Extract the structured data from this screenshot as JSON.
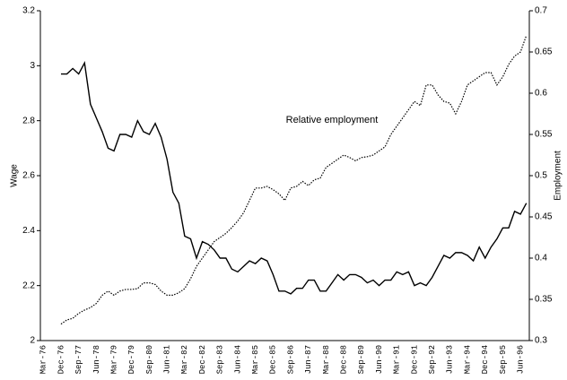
{
  "chart_data": {
    "type": "line",
    "y_label": "Wage",
    "y2_label": "Employment",
    "annotation": "Relative employment",
    "categories": [
      "Mar-76",
      null,
      null,
      "Dec-76",
      null,
      null,
      "Sep-77",
      null,
      null,
      "Jun-78",
      null,
      null,
      "Mar-79",
      null,
      null,
      "Dec-79",
      null,
      null,
      "Sep-80",
      null,
      null,
      "Jun-81",
      null,
      null,
      "Mar-82",
      null,
      null,
      "Dec-82",
      null,
      null,
      "Sep-83",
      null,
      null,
      "Jun-84",
      null,
      null,
      "Mar-85",
      null,
      null,
      "Dec-85",
      null,
      null,
      "Sep-86",
      null,
      null,
      "Jun-87",
      null,
      null,
      "Mar-88",
      null,
      null,
      "Dec-88",
      null,
      null,
      "Sep-89",
      null,
      null,
      "Jun-90",
      null,
      null,
      "Mar-91",
      null,
      null,
      "Dec-91",
      null,
      null,
      "Sep-92",
      null,
      null,
      "Jun-93",
      null,
      null,
      "Mar-94",
      null,
      null,
      "Dec-94",
      null,
      null,
      "Sep-95",
      null,
      null,
      "Jun-96",
      null
    ],
    "series": [
      {
        "color": "#000000",
        "dash": "solid",
        "values": [
          null,
          null,
          null,
          2.97,
          2.97,
          2.99,
          2.97,
          3.01,
          2.86,
          2.81,
          2.76,
          2.7,
          2.69,
          2.75,
          2.75,
          2.74,
          2.8,
          2.76,
          2.75,
          2.79,
          2.74,
          2.66,
          2.54,
          2.5,
          2.38,
          2.37,
          2.3,
          2.36,
          2.35,
          2.33,
          2.3,
          2.3,
          2.26,
          2.25,
          2.27,
          2.29,
          2.28,
          2.3,
          2.29,
          2.24,
          2.18,
          2.18,
          2.17,
          2.19,
          2.19,
          2.22,
          2.22,
          2.18,
          2.18,
          2.21,
          2.24,
          2.22,
          2.24,
          2.24,
          2.23,
          2.21,
          2.22,
          2.2,
          2.22,
          2.22,
          2.25,
          2.24,
          2.25,
          2.2,
          2.21,
          2.2,
          2.23,
          2.27,
          2.31,
          2.3,
          2.32,
          2.32,
          2.31,
          2.29,
          2.34,
          2.3,
          2.34,
          2.37,
          2.41,
          2.41,
          2.47,
          2.46,
          2.5
        ]
      },
      {
        "color": "#000000",
        "dash": "dotted",
        "axis": "y2",
        "values": [
          null,
          null,
          null,
          0.32,
          0.325,
          0.327,
          0.333,
          0.337,
          0.34,
          0.345,
          0.355,
          0.36,
          0.355,
          0.36,
          0.362,
          0.362,
          0.363,
          0.37,
          0.37,
          0.368,
          0.36,
          0.355,
          0.355,
          0.358,
          0.363,
          0.375,
          0.39,
          0.4,
          0.41,
          0.42,
          0.425,
          0.43,
          0.437,
          0.445,
          0.455,
          0.47,
          0.485,
          0.485,
          0.487,
          0.483,
          0.478,
          0.47,
          0.485,
          0.487,
          0.493,
          0.488,
          0.495,
          0.497,
          0.51,
          0.515,
          0.52,
          0.525,
          0.522,
          0.518,
          0.522,
          0.523,
          0.525,
          0.53,
          0.535,
          0.55,
          0.56,
          0.57,
          0.58,
          0.59,
          0.585,
          0.61,
          0.61,
          0.598,
          0.59,
          0.588,
          0.575,
          0.59,
          0.61,
          0.615,
          0.62,
          0.625,
          0.625,
          0.61,
          0.62,
          0.635,
          0.645,
          0.65,
          0.67
        ]
      }
    ],
    "ylim": [
      2,
      3.2
    ],
    "yticks": [
      2,
      2.2,
      2.4,
      2.6,
      2.8,
      3,
      3.2
    ],
    "y2lim": [
      0.3,
      0.7
    ],
    "y2ticks": [
      0.3,
      0.35,
      0.4,
      0.45,
      0.5,
      0.55,
      0.6,
      0.65,
      0.7
    ],
    "grid": false
  }
}
